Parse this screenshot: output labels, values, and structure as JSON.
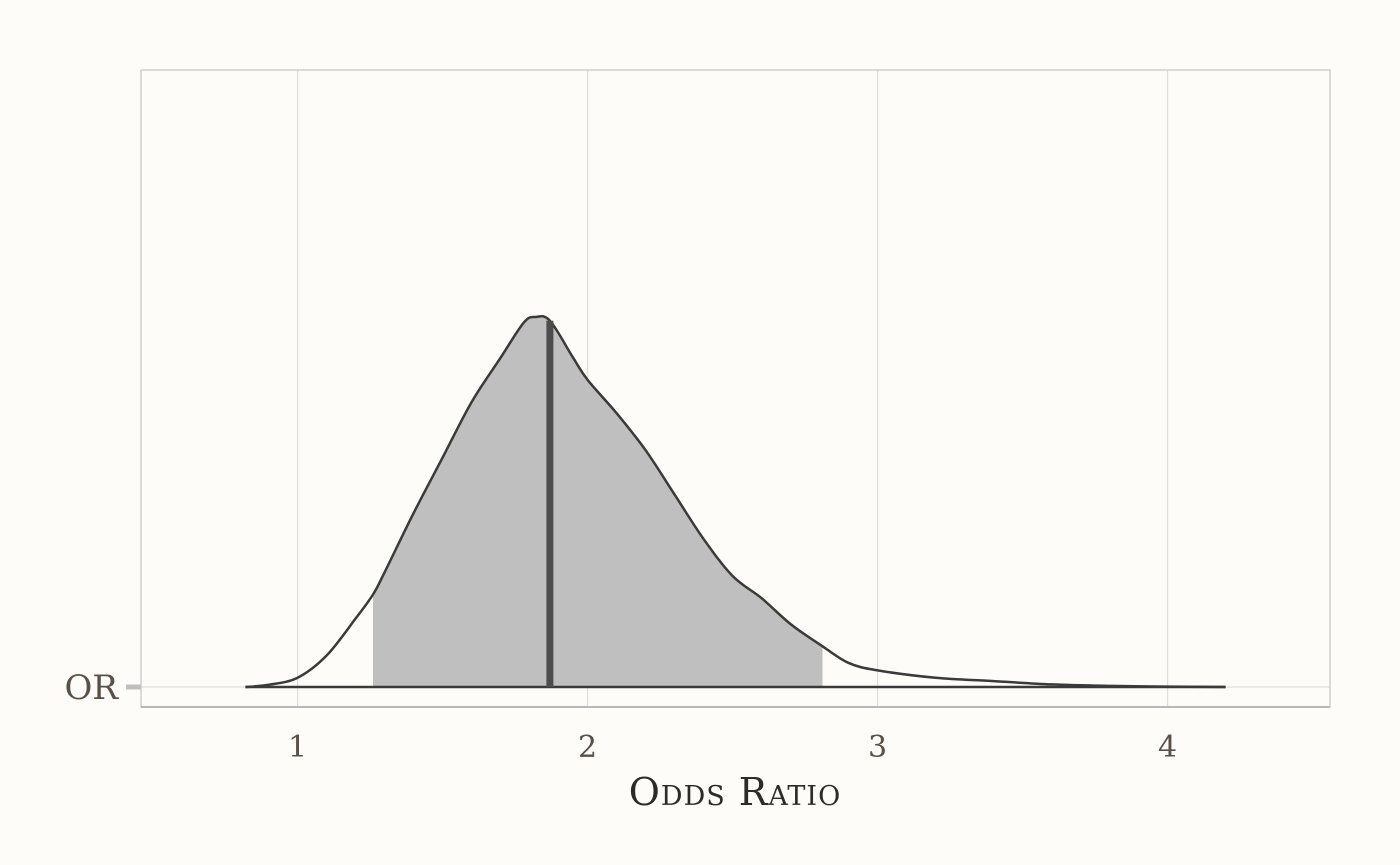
{
  "chart_data": {
    "type": "area",
    "subtype": "density-interval",
    "xlabel": "Odds Ratio",
    "ylabel": "",
    "categories": [
      "OR"
    ],
    "xlim": [
      0.46,
      4.56
    ],
    "xticks": [
      1,
      2,
      3,
      4
    ],
    "xtick_labels": [
      "1",
      "2",
      "3",
      "4"
    ],
    "grid": true,
    "legend": "none",
    "series": [
      {
        "point_estimate": 1.87,
        "interval": [
          1.26,
          2.81
        ],
        "density": {
          "x": [
            0.82,
            0.9,
            1.0,
            1.1,
            1.2,
            1.26,
            1.3,
            1.4,
            1.5,
            1.6,
            1.7,
            1.78,
            1.82,
            1.87,
            1.95,
            2.0,
            2.1,
            2.2,
            2.3,
            2.4,
            2.5,
            2.6,
            2.7,
            2.81,
            2.9,
            3.0,
            3.2,
            3.4,
            3.6,
            3.8,
            4.0,
            4.2
          ],
          "y": [
            0.0,
            0.006,
            0.025,
            0.085,
            0.185,
            0.25,
            0.31,
            0.47,
            0.62,
            0.77,
            0.89,
            0.985,
            1.0,
            0.99,
            0.89,
            0.83,
            0.74,
            0.64,
            0.52,
            0.4,
            0.3,
            0.24,
            0.17,
            0.11,
            0.065,
            0.045,
            0.025,
            0.016,
            0.007,
            0.003,
            0.001,
            0.0
          ]
        }
      }
    ],
    "colors": {
      "background": "#fdfcf8",
      "interval_fill": "#bfbfbf",
      "density_line": "#3a3a3a",
      "point_line": "#4d4d4d",
      "grid": "#dedede",
      "panel_border": "#cfcfcf"
    }
  }
}
